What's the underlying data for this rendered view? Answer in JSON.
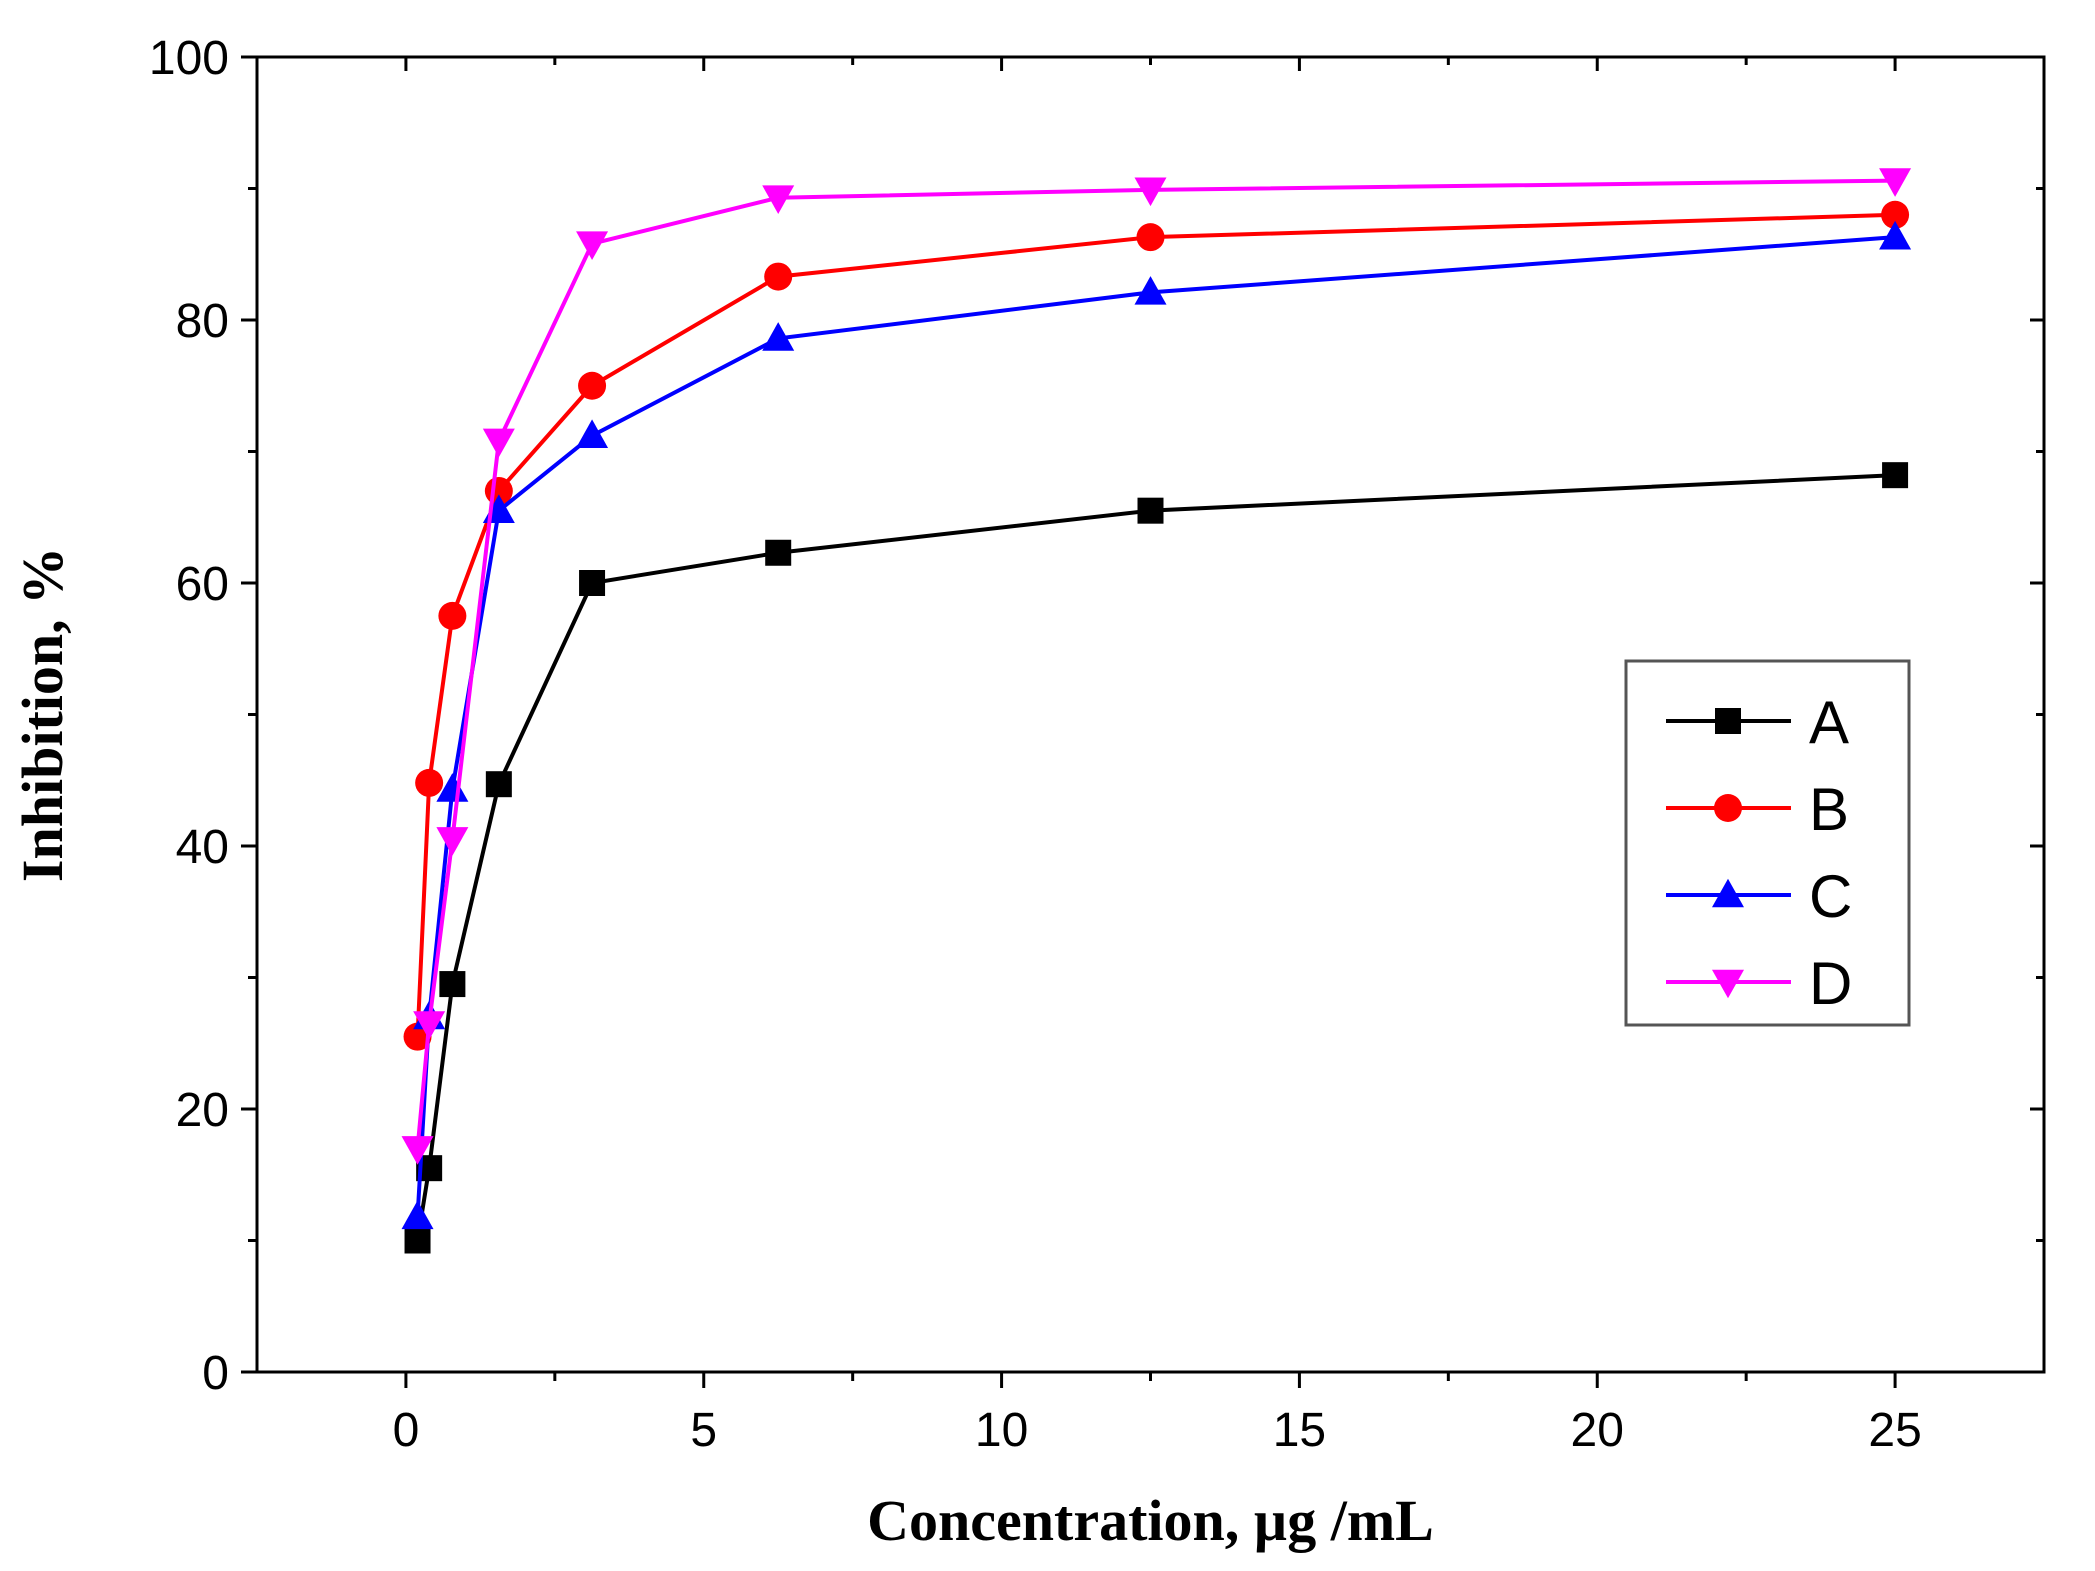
{
  "chart_data": {
    "type": "line",
    "title": "",
    "xlabel": "Concentration, µg /mL",
    "ylabel": "Inhibition, %",
    "xlim": [
      -2.5,
      27.5
    ],
    "ylim": [
      0,
      100
    ],
    "x_ticks": [
      0,
      5,
      10,
      15,
      20,
      25
    ],
    "x_tick_labels": [
      "0",
      "5",
      "10",
      "15",
      "20",
      "25"
    ],
    "y_ticks": [
      0,
      20,
      40,
      60,
      80,
      100
    ],
    "y_tick_labels": [
      "0",
      "20",
      "40",
      "60",
      "80",
      "100"
    ],
    "grid": false,
    "legend_position": "center-right",
    "x": [
      0.195,
      0.39,
      0.78,
      1.56,
      3.125,
      6.25,
      12.5,
      25
    ],
    "series": [
      {
        "name": "A",
        "color": "#000000",
        "marker": "square",
        "values": [
          10.0,
          15.5,
          29.5,
          44.7,
          60.0,
          62.3,
          65.5,
          68.2
        ]
      },
      {
        "name": "B",
        "color": "#ff0000",
        "marker": "circle",
        "values": [
          25.5,
          44.8,
          57.5,
          67.0,
          75.0,
          83.3,
          86.3,
          88.0
        ]
      },
      {
        "name": "C",
        "color": "#0000ff",
        "marker": "triangle-up",
        "values": [
          11.8,
          27.0,
          44.3,
          65.5,
          71.2,
          78.6,
          82.1,
          86.3
        ]
      },
      {
        "name": "D",
        "color": "#ff00ff",
        "marker": "triangle-down",
        "values": [
          17.0,
          26.5,
          40.5,
          70.8,
          85.8,
          89.3,
          89.9,
          90.6
        ]
      }
    ]
  }
}
